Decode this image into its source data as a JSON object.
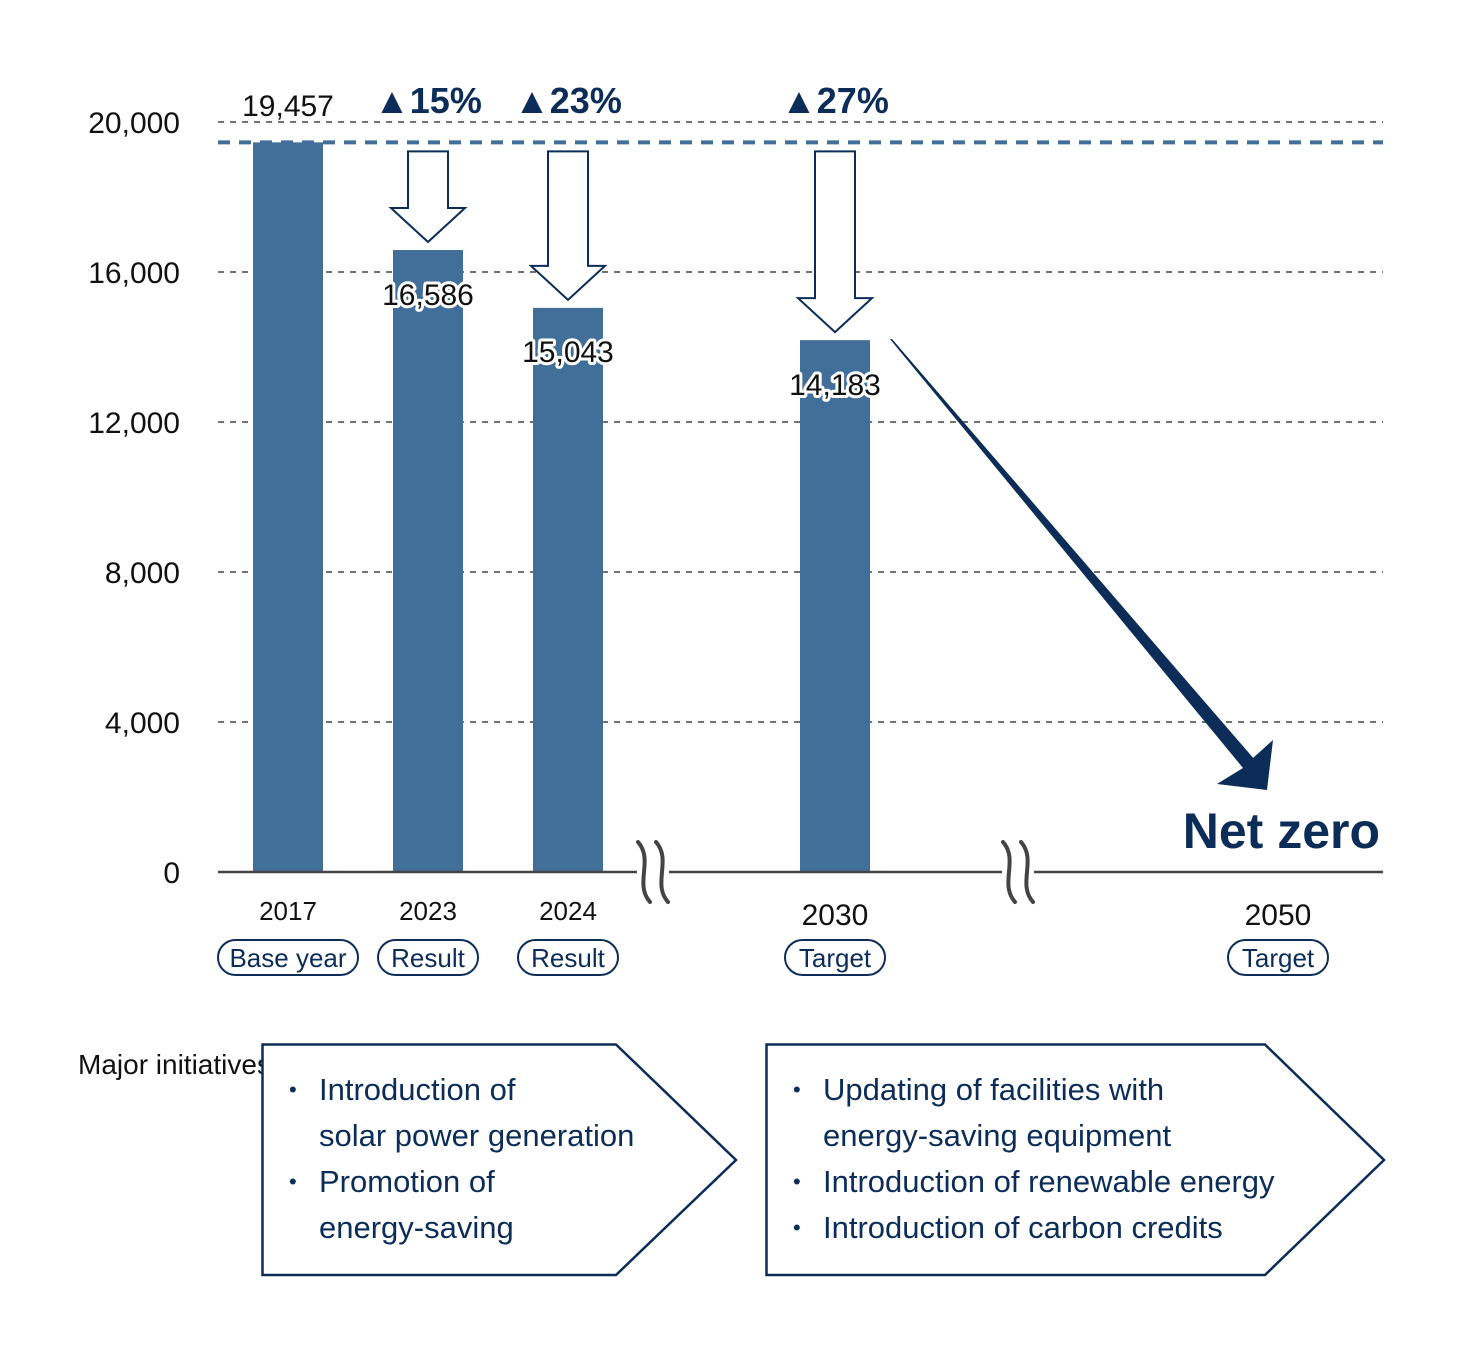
{
  "chart_data": {
    "type": "bar",
    "title": "",
    "xlabel": "",
    "ylabel": "",
    "ylim": [
      0,
      20000
    ],
    "yticks": [
      0,
      4000,
      8000,
      12000,
      16000,
      20000
    ],
    "ytick_labels": [
      "0",
      "4,000",
      "8,000",
      "12,000",
      "16,000",
      "20,000"
    ],
    "grid": true,
    "categories": [
      "2017",
      "2023",
      "2024",
      "2030",
      "2050"
    ],
    "category_tags": [
      "Base year",
      "Result",
      "Result",
      "Target",
      "Target"
    ],
    "values": [
      19457,
      16586,
      15043,
      14183,
      0
    ],
    "value_labels": [
      "19,457",
      "16,586",
      "15,043",
      "14,183",
      "Net zero"
    ],
    "reduction_labels": [
      null,
      "▲15%",
      "▲23%",
      "▲27%",
      null
    ],
    "reference_line": {
      "value": 19457,
      "style": "dashed"
    },
    "axis_breaks": [
      "between 2024 and 2030",
      "between 2030 and 2050"
    ],
    "trend_arrow": "2030 → 2050 (Net zero)",
    "colors": {
      "bar": "#426f99",
      "accent": "#0b2d57",
      "grid": "#444444"
    }
  },
  "initiatives": {
    "title": "Major initiatives",
    "phases": [
      {
        "items": [
          "Introduction of\nsolar power generation",
          "Promotion of\nenergy-saving"
        ]
      },
      {
        "items": [
          "Updating of facilities with\nenergy-saving equipment",
          "Introduction of renewable energy",
          "Introduction of carbon credits"
        ]
      }
    ]
  }
}
